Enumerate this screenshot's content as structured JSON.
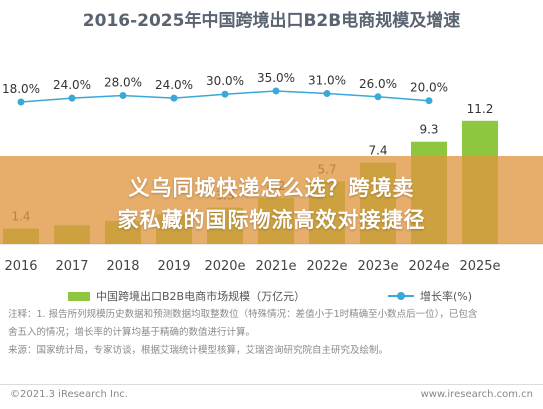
{
  "chart_data": {
    "type": "bar",
    "title": "2016-2025年中国跨境出口B2B电商规模及增速",
    "categories": [
      "2016",
      "2017",
      "2018",
      "2019",
      "2020e",
      "2021e",
      "2022e",
      "2023e",
      "2024e",
      "2025e"
    ],
    "series": [
      {
        "name": "中国跨境出口B2B电商市场规模（万亿元）",
        "type": "bar",
        "values": [
          1.4,
          1.7,
          2.1,
          2.7,
          3.3,
          4.2,
          5.7,
          7.4,
          9.3,
          11.2
        ],
        "value_labels": [
          "1.4",
          null,
          null,
          null,
          "3.3",
          "4.2",
          "5.7",
          "7.4",
          "9.3",
          "11.2"
        ]
      },
      {
        "name": "增长率(%)",
        "type": "line",
        "values": [
          18.0,
          24.0,
          28.0,
          24.0,
          30.0,
          35.0,
          31.0,
          26.0,
          20.0,
          null
        ],
        "value_labels": [
          "18.0%",
          "24.0%",
          "28.0%",
          "24.0%",
          "30.0%",
          "35.0%",
          "31.0%",
          "26.0%",
          "20.0%",
          null
        ]
      }
    ],
    "colors": {
      "bar": "#8dc63f",
      "line": "#3aa8d8"
    },
    "legend_position": "bottom"
  },
  "overlay": {
    "line1": "义乌同城快递怎么选？跨境卖",
    "line2": "家私藏的国际物流高效对接捷径",
    "background": "#e09640"
  },
  "notes": {
    "line1": "注释：1. 报告所列规模历史数据和预测数据均取整数位（特殊情况：差值小于1时精确至小数点后一位），已包含",
    "line2": "舍五入的情况；增长率的计算均基于精确的数值进行计算。",
    "line3": "来源：国家统计局，专家访谈，根据艾瑞统计模型核算，艾瑞咨询研究院自主研究及绘制。"
  },
  "footer": {
    "left": "©2021.3 iResearch Inc.",
    "right": "www.iresearch.com.cn"
  }
}
